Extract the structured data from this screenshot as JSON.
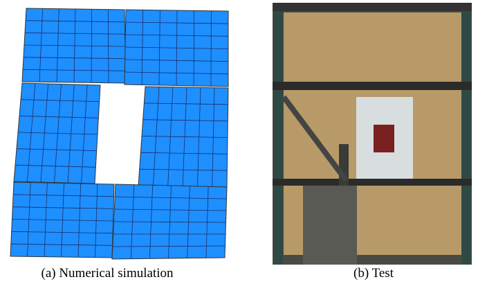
{
  "figure": {
    "panels": [
      {
        "caption": "(a) Numerical simulation"
      },
      {
        "caption": "(b) Test"
      }
    ]
  }
}
